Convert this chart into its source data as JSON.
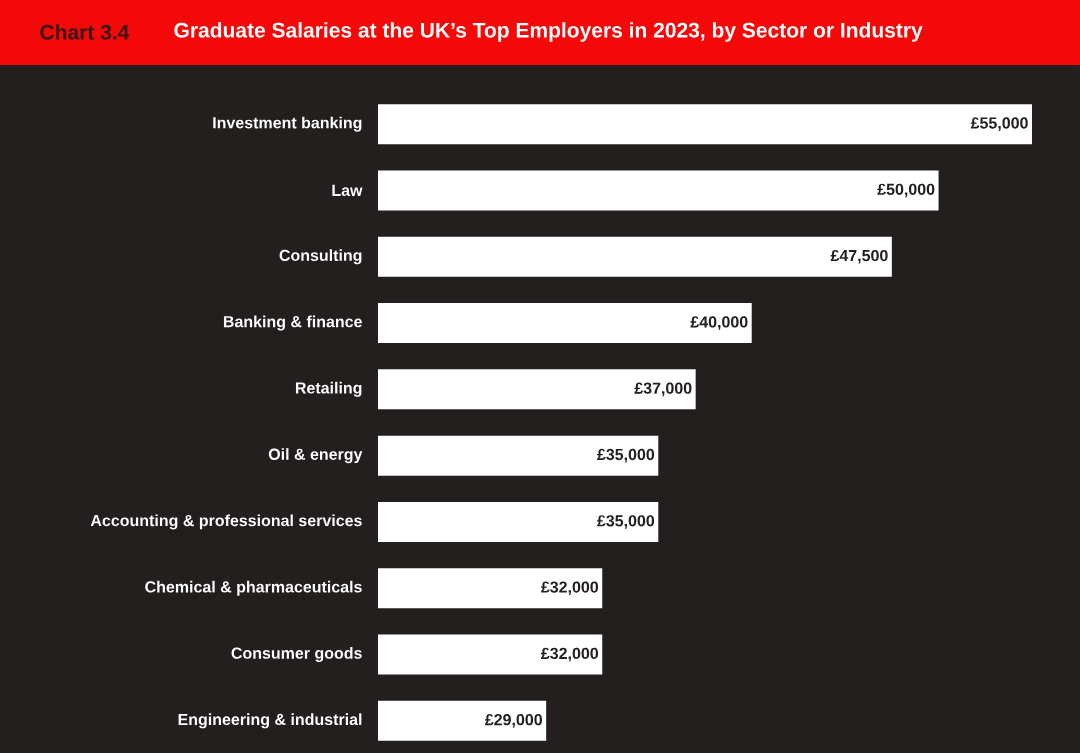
{
  "chart_data": {
    "type": "bar",
    "orientation": "horizontal",
    "title": "Graduate Salaries at the UK’s Top Employers in 2023, by Sector or Industry",
    "annotations": [
      "Chart 3.4"
    ],
    "categories": [
      "Investment banking",
      "Law",
      "Consulting",
      "Banking & finance",
      "Retailing",
      "Oil & energy",
      "Accounting & professional services",
      "Chemical & pharmaceuticals",
      "Consumer goods",
      "Engineering & industrial"
    ],
    "values": [
      55000,
      50000,
      47500,
      40000,
      37000,
      35000,
      35000,
      32000,
      32000,
      29000
    ],
    "value_labels": [
      "£55,000",
      "£50,000",
      "£47,500",
      "£40,000",
      "£37,000",
      "£35,000",
      "£35,000",
      "£32,000",
      "£32,000",
      "£29,000"
    ],
    "color": "#ffffff",
    "xlim": [
      20000,
      55000
    ]
  }
}
